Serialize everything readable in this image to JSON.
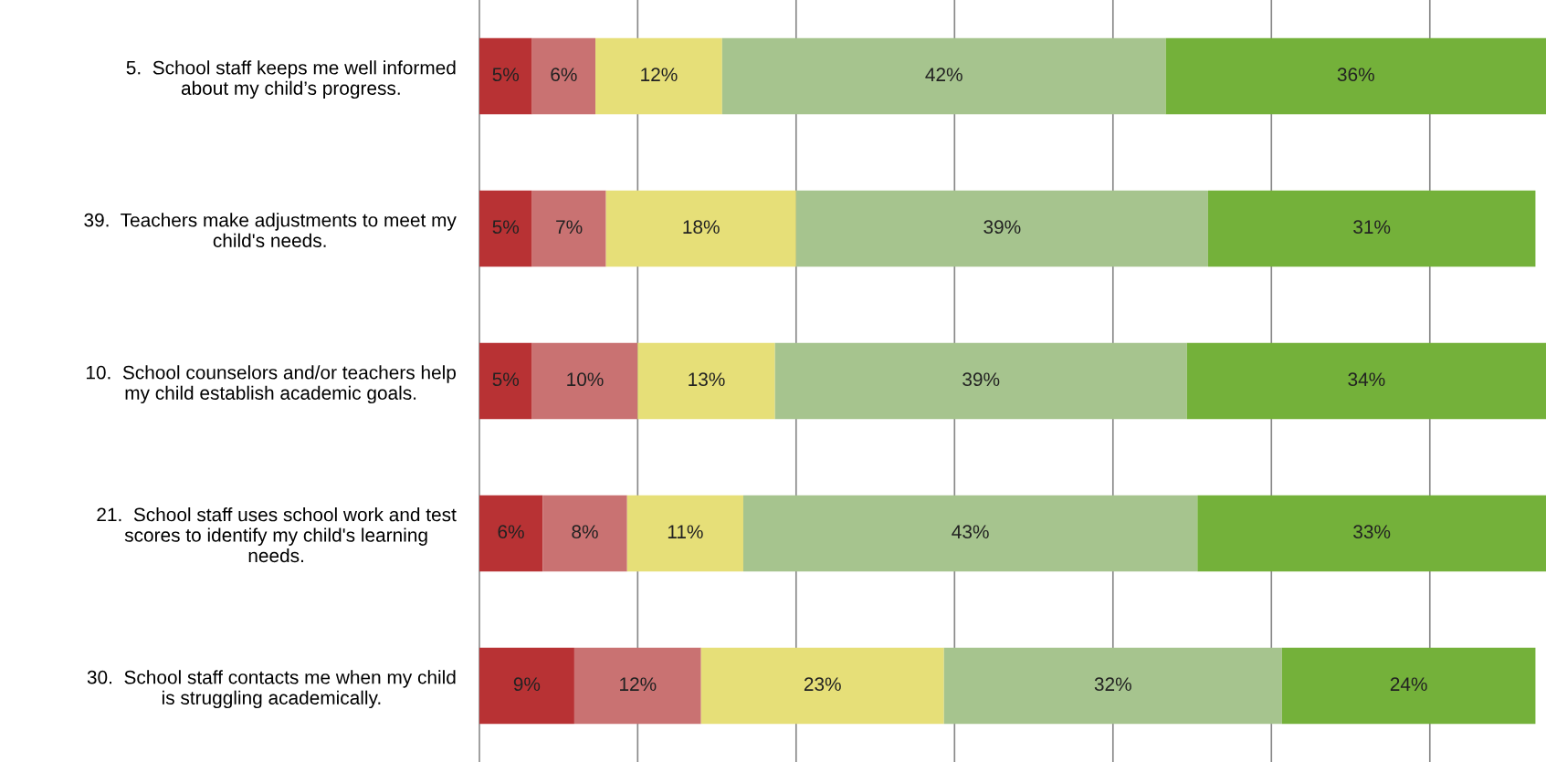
{
  "chart_data": {
    "type": "bar",
    "orientation": "horizontal",
    "stacked": true,
    "grid": "x",
    "tick_labels": "y",
    "legend": false,
    "categories": [
      "5.  School staff keeps me well informed about my child’s progress.",
      "39.  Teachers make adjustments to meet my child's needs.",
      "10.  School counselors and/or teachers help my child establish academic goals.",
      "21.  School staff uses school work and test scores to identify my child's learning needs.",
      "30.  School staff contacts me when my child is struggling academically."
    ],
    "series": [
      {
        "color": "#b83234",
        "values": [
          5,
          5,
          5,
          6,
          9
        ],
        "value_labels": [
          "5%",
          "5%",
          "5%",
          "6%",
          "9%"
        ]
      },
      {
        "color": "#c97272",
        "values": [
          6,
          7,
          10,
          8,
          12
        ],
        "value_labels": [
          "6%",
          "7%",
          "10%",
          "8%",
          "12%"
        ]
      },
      {
        "color": "#e6df78",
        "values": [
          12,
          18,
          13,
          11,
          23
        ],
        "value_labels": [
          "12%",
          "18%",
          "13%",
          "11%",
          "23%"
        ]
      },
      {
        "color": "#a6c48e",
        "values": [
          42,
          39,
          39,
          43,
          32
        ],
        "value_labels": [
          "42%",
          "39%",
          "39%",
          "43%",
          "32%"
        ]
      },
      {
        "color": "#74b13a",
        "values": [
          36,
          31,
          34,
          33,
          24
        ],
        "value_labels": [
          "36%",
          "31%",
          "34%",
          "33%",
          "24%"
        ]
      }
    ]
  }
}
